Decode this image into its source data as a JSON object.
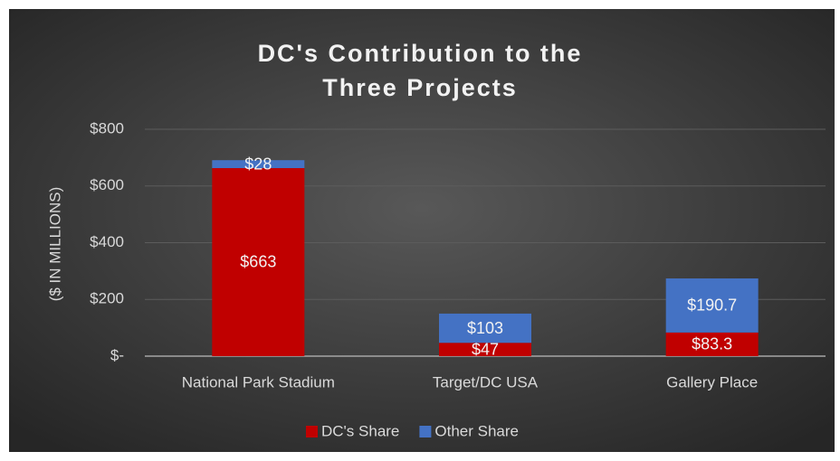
{
  "chart_data": {
    "type": "stacked_bar",
    "title": "DC's Contribution to the Three Projects",
    "y_label": "($ IN MILLIONS)",
    "categories": [
      "National Park Stadium",
      "Target/DC USA",
      "Gallery Place"
    ],
    "series": [
      {
        "name": "DC's Share",
        "color": "#c00000",
        "values": [
          663,
          47,
          83.3
        ],
        "value_labels": [
          "$663",
          "$47",
          "$83.3"
        ]
      },
      {
        "name": "Other Share",
        "color": "#4472c4",
        "values": [
          28,
          103,
          190.7
        ],
        "value_labels": [
          "$28",
          "$103",
          "$190.7"
        ]
      }
    ],
    "ylim": [
      0,
      800
    ],
    "yticks": [
      {
        "value": 0,
        "label": "$-"
      },
      {
        "value": 200,
        "label": "$200"
      },
      {
        "value": 400,
        "label": "$400"
      },
      {
        "value": 600,
        "label": "$600"
      },
      {
        "value": 800,
        "label": "$800"
      }
    ],
    "grid": true,
    "legend": "bottom"
  }
}
